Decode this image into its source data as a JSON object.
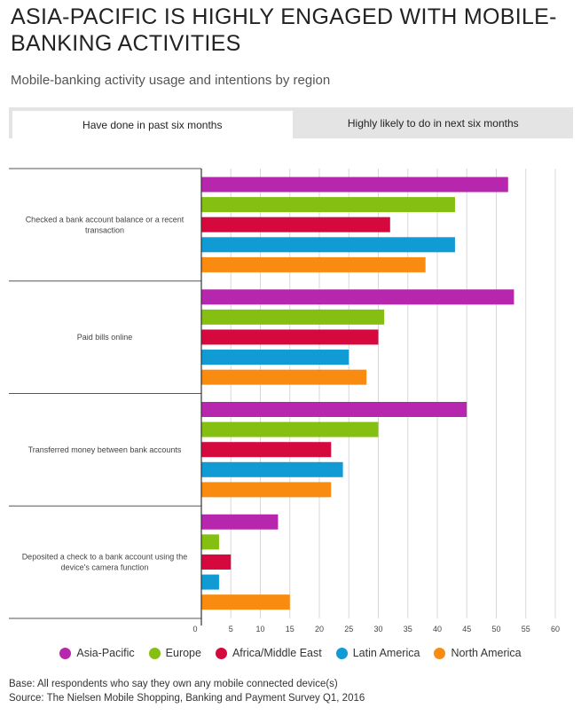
{
  "title": "ASIA-PACIFIC IS HIGHLY ENGAGED WITH MOBILE-BANKING ACTIVITIES",
  "subtitle": "Mobile-banking activity usage and intentions by region",
  "tabs": [
    {
      "label": "Have done in past six months",
      "active": true
    },
    {
      "label": "Highly likely to do in next six months",
      "active": false
    }
  ],
  "colors": {
    "Asia-Pacific": "#b627ad",
    "Europe": "#84bf11",
    "Africa/Middle East": "#d6093e",
    "Latin America": "#119bd5",
    "North America": "#f98b10"
  },
  "chart_data": {
    "type": "bar",
    "orientation": "horizontal",
    "categories": [
      "Checked a bank account balance or a recent transaction",
      "Paid bills online",
      "Transferred money between bank accounts",
      "Deposited a check to a bank account using the device's camera function"
    ],
    "series": [
      {
        "name": "Asia-Pacific",
        "values": [
          52,
          53,
          45,
          13
        ]
      },
      {
        "name": "Europe",
        "values": [
          43,
          31,
          30,
          3
        ]
      },
      {
        "name": "Africa/Middle East",
        "values": [
          32,
          30,
          22,
          5
        ]
      },
      {
        "name": "Latin America",
        "values": [
          43,
          25,
          24,
          3
        ]
      },
      {
        "name": "North America",
        "values": [
          38,
          28,
          22,
          15
        ]
      }
    ],
    "xlim": [
      0,
      60
    ],
    "xticks": [
      0,
      5,
      10,
      15,
      20,
      25,
      30,
      35,
      40,
      45,
      50,
      55,
      60
    ],
    "grid": true,
    "legend": "bottom"
  },
  "footer": {
    "base": "Base: All respondents who say they own any mobile connected device(s)",
    "source": "Source: The Nielsen Mobile Shopping, Banking and Payment Survey Q1, 2016"
  }
}
